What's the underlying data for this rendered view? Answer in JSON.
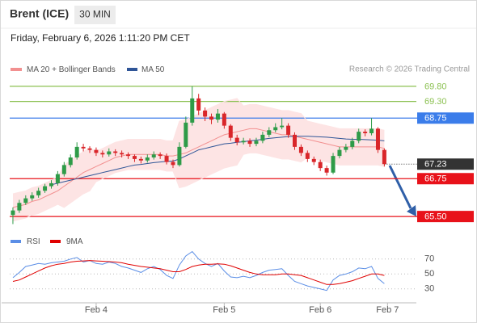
{
  "header": {
    "title": "Brent (ICE)",
    "timeframe": "30 MIN",
    "datetime": "Friday, February 6, 2026 1:11:20 PM CET"
  },
  "chart_data": [
    {
      "type": "candlestick",
      "source": "Research © 2026 Trading Central",
      "up_color": "#2e9b48",
      "down_color": "#d9262a",
      "open": [
        65.55,
        65.7,
        65.95,
        66.1,
        66.2,
        66.35,
        66.5,
        66.6,
        66.9,
        67.2,
        67.45,
        67.8,
        67.75,
        67.7,
        67.6,
        67.55,
        67.65,
        67.6,
        67.55,
        67.5,
        67.4,
        67.35,
        67.45,
        67.55,
        67.5,
        67.3,
        67.2,
        67.8,
        68.6,
        69.4,
        69.0,
        68.8,
        68.7,
        68.9,
        68.5,
        68.1,
        67.95,
        68.0,
        67.9,
        68.0,
        68.2,
        68.35,
        68.45,
        68.5,
        68.2,
        67.8,
        67.6,
        67.4,
        67.3,
        67.1,
        66.95,
        67.5,
        67.7,
        67.8,
        68.0,
        68.3,
        68.25,
        68.4,
        67.7
      ],
      "high": [
        65.8,
        66.05,
        66.2,
        66.3,
        66.45,
        66.58,
        66.7,
        67.0,
        67.3,
        67.55,
        67.95,
        67.9,
        67.82,
        67.78,
        67.68,
        67.75,
        67.72,
        67.68,
        67.62,
        67.55,
        67.48,
        67.55,
        67.65,
        67.62,
        67.58,
        67.38,
        67.95,
        68.8,
        69.8,
        69.55,
        69.1,
        68.9,
        69.05,
        68.95,
        68.55,
        68.2,
        68.1,
        68.08,
        68.1,
        68.3,
        68.45,
        68.58,
        68.75,
        68.58,
        68.28,
        67.88,
        67.68,
        67.48,
        67.38,
        67.18,
        67.6,
        67.8,
        67.9,
        68.1,
        68.4,
        68.38,
        68.75,
        68.45,
        67.75
      ],
      "low": [
        65.25,
        65.62,
        65.88,
        66.02,
        66.12,
        66.28,
        66.42,
        66.52,
        66.82,
        67.12,
        67.38,
        67.65,
        67.6,
        67.5,
        67.45,
        67.48,
        67.5,
        67.45,
        67.4,
        67.3,
        67.25,
        67.28,
        67.38,
        67.4,
        67.22,
        67.1,
        67.15,
        67.75,
        68.5,
        68.85,
        68.65,
        68.55,
        68.6,
        68.4,
        68.0,
        67.85,
        67.88,
        67.8,
        67.82,
        67.92,
        68.12,
        68.28,
        68.38,
        68.1,
        67.7,
        67.5,
        67.3,
        67.2,
        67.0,
        66.85,
        66.9,
        67.42,
        67.62,
        67.72,
        67.92,
        68.15,
        68.18,
        67.6,
        67.15
      ],
      "close": [
        65.7,
        65.95,
        66.1,
        66.2,
        66.35,
        66.5,
        66.6,
        66.9,
        67.2,
        67.45,
        67.8,
        67.75,
        67.7,
        67.6,
        67.55,
        67.65,
        67.6,
        67.55,
        67.5,
        67.4,
        67.35,
        67.45,
        67.55,
        67.5,
        67.3,
        67.2,
        67.8,
        68.6,
        69.4,
        69.0,
        68.8,
        68.7,
        68.9,
        68.5,
        68.1,
        67.95,
        68.0,
        67.9,
        68.0,
        68.2,
        68.35,
        68.45,
        68.5,
        68.2,
        67.8,
        67.6,
        67.4,
        67.3,
        67.1,
        66.95,
        67.5,
        67.7,
        67.8,
        68.0,
        68.3,
        68.25,
        68.4,
        67.7,
        67.23
      ],
      "series": [
        {
          "name": "MA 20 + Bollinger Bands",
          "color": "#f29090",
          "band_color": "#fde4e4",
          "values": [
            65.8,
            65.85,
            65.9,
            66.0,
            66.05,
            66.15,
            66.25,
            66.35,
            66.5,
            66.65,
            66.8,
            66.95,
            67.05,
            67.15,
            67.25,
            67.35,
            67.45,
            67.5,
            67.55,
            67.55,
            67.55,
            67.55,
            67.55,
            67.55,
            67.5,
            67.5,
            67.55,
            67.6,
            67.7,
            67.8,
            67.9,
            68.0,
            68.1,
            68.2,
            68.25,
            68.3,
            68.35,
            68.4,
            68.4,
            68.35,
            68.3,
            68.25,
            68.2,
            68.2,
            68.15,
            68.1,
            68.05,
            68.0,
            67.95,
            67.9,
            67.85,
            67.8,
            67.8,
            67.8,
            67.8,
            67.8,
            67.8,
            67.8,
            67.75
          ],
          "upper": [
            66.25,
            66.3,
            66.35,
            66.45,
            66.5,
            66.6,
            66.7,
            66.8,
            67.2,
            67.35,
            67.5,
            67.65,
            67.75,
            67.65,
            67.75,
            67.85,
            67.95,
            68.0,
            68.05,
            68.05,
            68.05,
            68.05,
            68.05,
            68.05,
            68.0,
            68.0,
            68.65,
            68.7,
            68.8,
            68.9,
            69.0,
            69.1,
            69.2,
            69.3,
            69.35,
            69.4,
            69.15,
            69.2,
            69.2,
            69.15,
            69.1,
            69.05,
            69.0,
            69.0,
            68.95,
            68.9,
            68.65,
            68.6,
            68.55,
            68.5,
            68.45,
            68.4,
            68.4,
            68.4,
            68.4,
            68.4,
            68.4,
            68.4,
            68.35
          ],
          "lower": [
            65.35,
            65.4,
            65.45,
            65.55,
            65.6,
            65.7,
            65.8,
            65.9,
            65.8,
            65.95,
            66.1,
            66.25,
            66.35,
            66.65,
            66.75,
            66.85,
            66.95,
            67.0,
            67.05,
            67.05,
            67.05,
            67.05,
            67.05,
            67.05,
            67.0,
            67.0,
            66.45,
            66.5,
            66.6,
            66.7,
            66.8,
            66.9,
            67.0,
            67.1,
            67.15,
            67.2,
            67.55,
            67.6,
            67.6,
            67.55,
            67.5,
            67.45,
            67.4,
            67.4,
            67.35,
            67.3,
            67.45,
            67.4,
            67.35,
            67.3,
            67.25,
            67.2,
            67.2,
            67.2,
            67.2,
            67.2,
            67.2,
            67.2,
            67.15
          ]
        },
        {
          "name": "MA 50",
          "color": "#2f5597",
          "values": [
            null,
            null,
            null,
            null,
            null,
            null,
            66.55,
            66.6,
            66.65,
            66.7,
            66.75,
            66.8,
            66.85,
            66.9,
            66.95,
            67.0,
            67.05,
            67.1,
            67.15,
            67.2,
            67.22,
            67.25,
            67.28,
            67.3,
            67.32,
            67.33,
            67.4,
            67.5,
            67.6,
            67.7,
            67.75,
            67.8,
            67.85,
            67.9,
            67.92,
            67.95,
            67.97,
            68.0,
            68.02,
            68.05,
            68.08,
            68.1,
            68.12,
            68.14,
            68.15,
            68.15,
            68.15,
            68.14,
            68.13,
            68.12,
            68.1,
            68.08,
            68.06,
            68.05,
            68.05,
            68.04,
            68.03,
            68.02,
            68.0
          ]
        }
      ],
      "levels": [
        {
          "value": 69.8,
          "label": "69.80",
          "color": "#8cc152",
          "box": false,
          "line": "solid"
        },
        {
          "value": 69.3,
          "label": "69.30",
          "color": "#8cc152",
          "box": false,
          "line": "solid"
        },
        {
          "value": 68.75,
          "label": "68.75",
          "color": "#3b7dea",
          "box": true,
          "line": "solid"
        },
        {
          "value": 67.23,
          "label": "67.23",
          "color": "#333333",
          "box": true,
          "line": "dotted"
        },
        {
          "value": 66.75,
          "label": "66.75",
          "color": "#e8121a",
          "box": true,
          "line": "solid"
        },
        {
          "value": 65.5,
          "label": "65.50",
          "color": "#e8121a",
          "box": true,
          "line": "solid"
        }
      ],
      "ylim": [
        65.05,
        70.65
      ],
      "xlim": [
        -0.5,
        63
      ],
      "xticks": [
        {
          "value": 13,
          "label": "Feb 4"
        },
        {
          "value": 33,
          "label": "Feb 5"
        },
        {
          "value": 48,
          "label": "Feb 6"
        },
        {
          "value": 58.5,
          "label": "Feb 7"
        }
      ]
    },
    {
      "type": "line",
      "series": [
        {
          "name": "RSI",
          "color": "#5b8ee6",
          "values": [
            45,
            52,
            60,
            62,
            64,
            63,
            65,
            66,
            67,
            70,
            72,
            66,
            68,
            64,
            63,
            66,
            64,
            60,
            58,
            55,
            52,
            57,
            60,
            56,
            48,
            44,
            62,
            74,
            80,
            70,
            64,
            60,
            64,
            54,
            46,
            45,
            47,
            45,
            48,
            52,
            55,
            56,
            57,
            48,
            40,
            37,
            34,
            32,
            30,
            28,
            42,
            48,
            50,
            53,
            58,
            57,
            60,
            44,
            37
          ]
        },
        {
          "name": "9MA",
          "color": "#e00000",
          "values": [
            40,
            42,
            46,
            50,
            54,
            58,
            61,
            63,
            64,
            66,
            67,
            67.5,
            68,
            67.5,
            67,
            66.5,
            66,
            65,
            63,
            61.5,
            60,
            59,
            58,
            57,
            55,
            53,
            53,
            56,
            60,
            62,
            63,
            63,
            63.5,
            63,
            61,
            58,
            55,
            52,
            50,
            49,
            49,
            49,
            50,
            50,
            49,
            48,
            45,
            42,
            39,
            36,
            36,
            37,
            39,
            41,
            44,
            47,
            50,
            50,
            48
          ]
        }
      ],
      "ylim": [
        19,
        87
      ],
      "yticks": [
        70,
        50,
        30
      ]
    }
  ]
}
